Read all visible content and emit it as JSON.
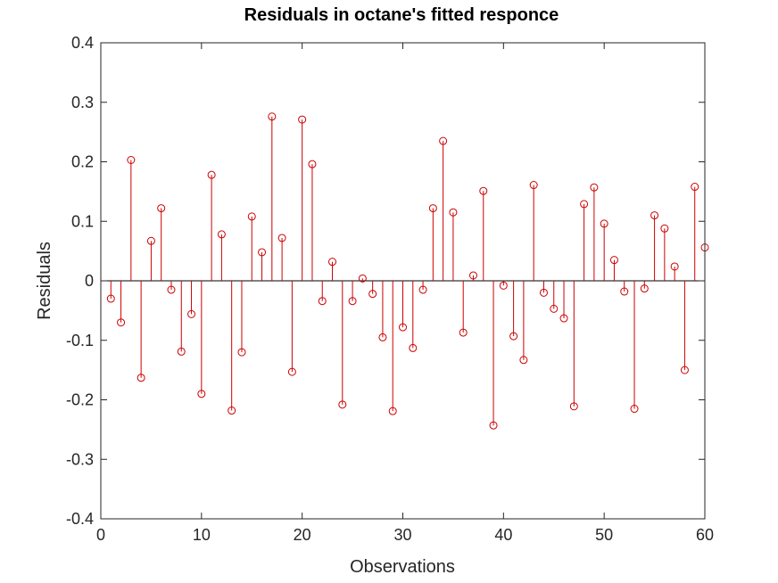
{
  "chart_data": {
    "type": "stem",
    "title": "Residuals in octane's fitted responce",
    "xlabel": "Observations",
    "ylabel": "Residuals",
    "xlim": [
      0,
      60
    ],
    "ylim": [
      -0.4,
      0.4
    ],
    "xticks": [
      0,
      10,
      20,
      30,
      40,
      50,
      60
    ],
    "yticks": [
      -0.4,
      -0.3,
      -0.2,
      -0.1,
      0,
      0.1,
      0.2,
      0.3,
      0.4
    ],
    "xtick_labels": [
      "0",
      "10",
      "20",
      "30",
      "40",
      "50",
      "60"
    ],
    "ytick_labels": [
      "-0.4",
      "-0.3",
      "-0.2",
      "-0.1",
      "0",
      "0.1",
      "0.2",
      "0.3",
      "0.4"
    ],
    "grid": false,
    "color": "#cc0000",
    "marker": "circle",
    "x": [
      1,
      2,
      3,
      4,
      5,
      6,
      7,
      8,
      9,
      10,
      11,
      12,
      13,
      14,
      15,
      16,
      17,
      18,
      19,
      20,
      21,
      22,
      23,
      24,
      25,
      26,
      27,
      28,
      29,
      30,
      31,
      32,
      33,
      34,
      35,
      36,
      37,
      38,
      39,
      40,
      41,
      42,
      43,
      44,
      45,
      46,
      47,
      48,
      49,
      50,
      51,
      52,
      53,
      54,
      55,
      56,
      57,
      58,
      59,
      60
    ],
    "values": [
      -0.03,
      -0.07,
      0.203,
      -0.163,
      0.067,
      0.122,
      -0.015,
      -0.119,
      -0.056,
      -0.19,
      0.178,
      0.078,
      -0.218,
      -0.12,
      0.108,
      0.048,
      0.276,
      0.072,
      -0.153,
      0.271,
      0.196,
      -0.034,
      0.032,
      -0.208,
      -0.034,
      0.004,
      -0.022,
      -0.095,
      -0.219,
      -0.078,
      -0.113,
      -0.015,
      0.122,
      0.235,
      0.115,
      -0.087,
      0.009,
      0.151,
      -0.243,
      -0.008,
      -0.093,
      -0.133,
      0.161,
      -0.02,
      -0.047,
      -0.063,
      -0.211,
      0.129,
      0.157,
      0.096,
      0.035,
      -0.018,
      -0.215,
      -0.013,
      0.11,
      0.088,
      0.024,
      -0.15,
      0.158,
      0.056
    ]
  }
}
